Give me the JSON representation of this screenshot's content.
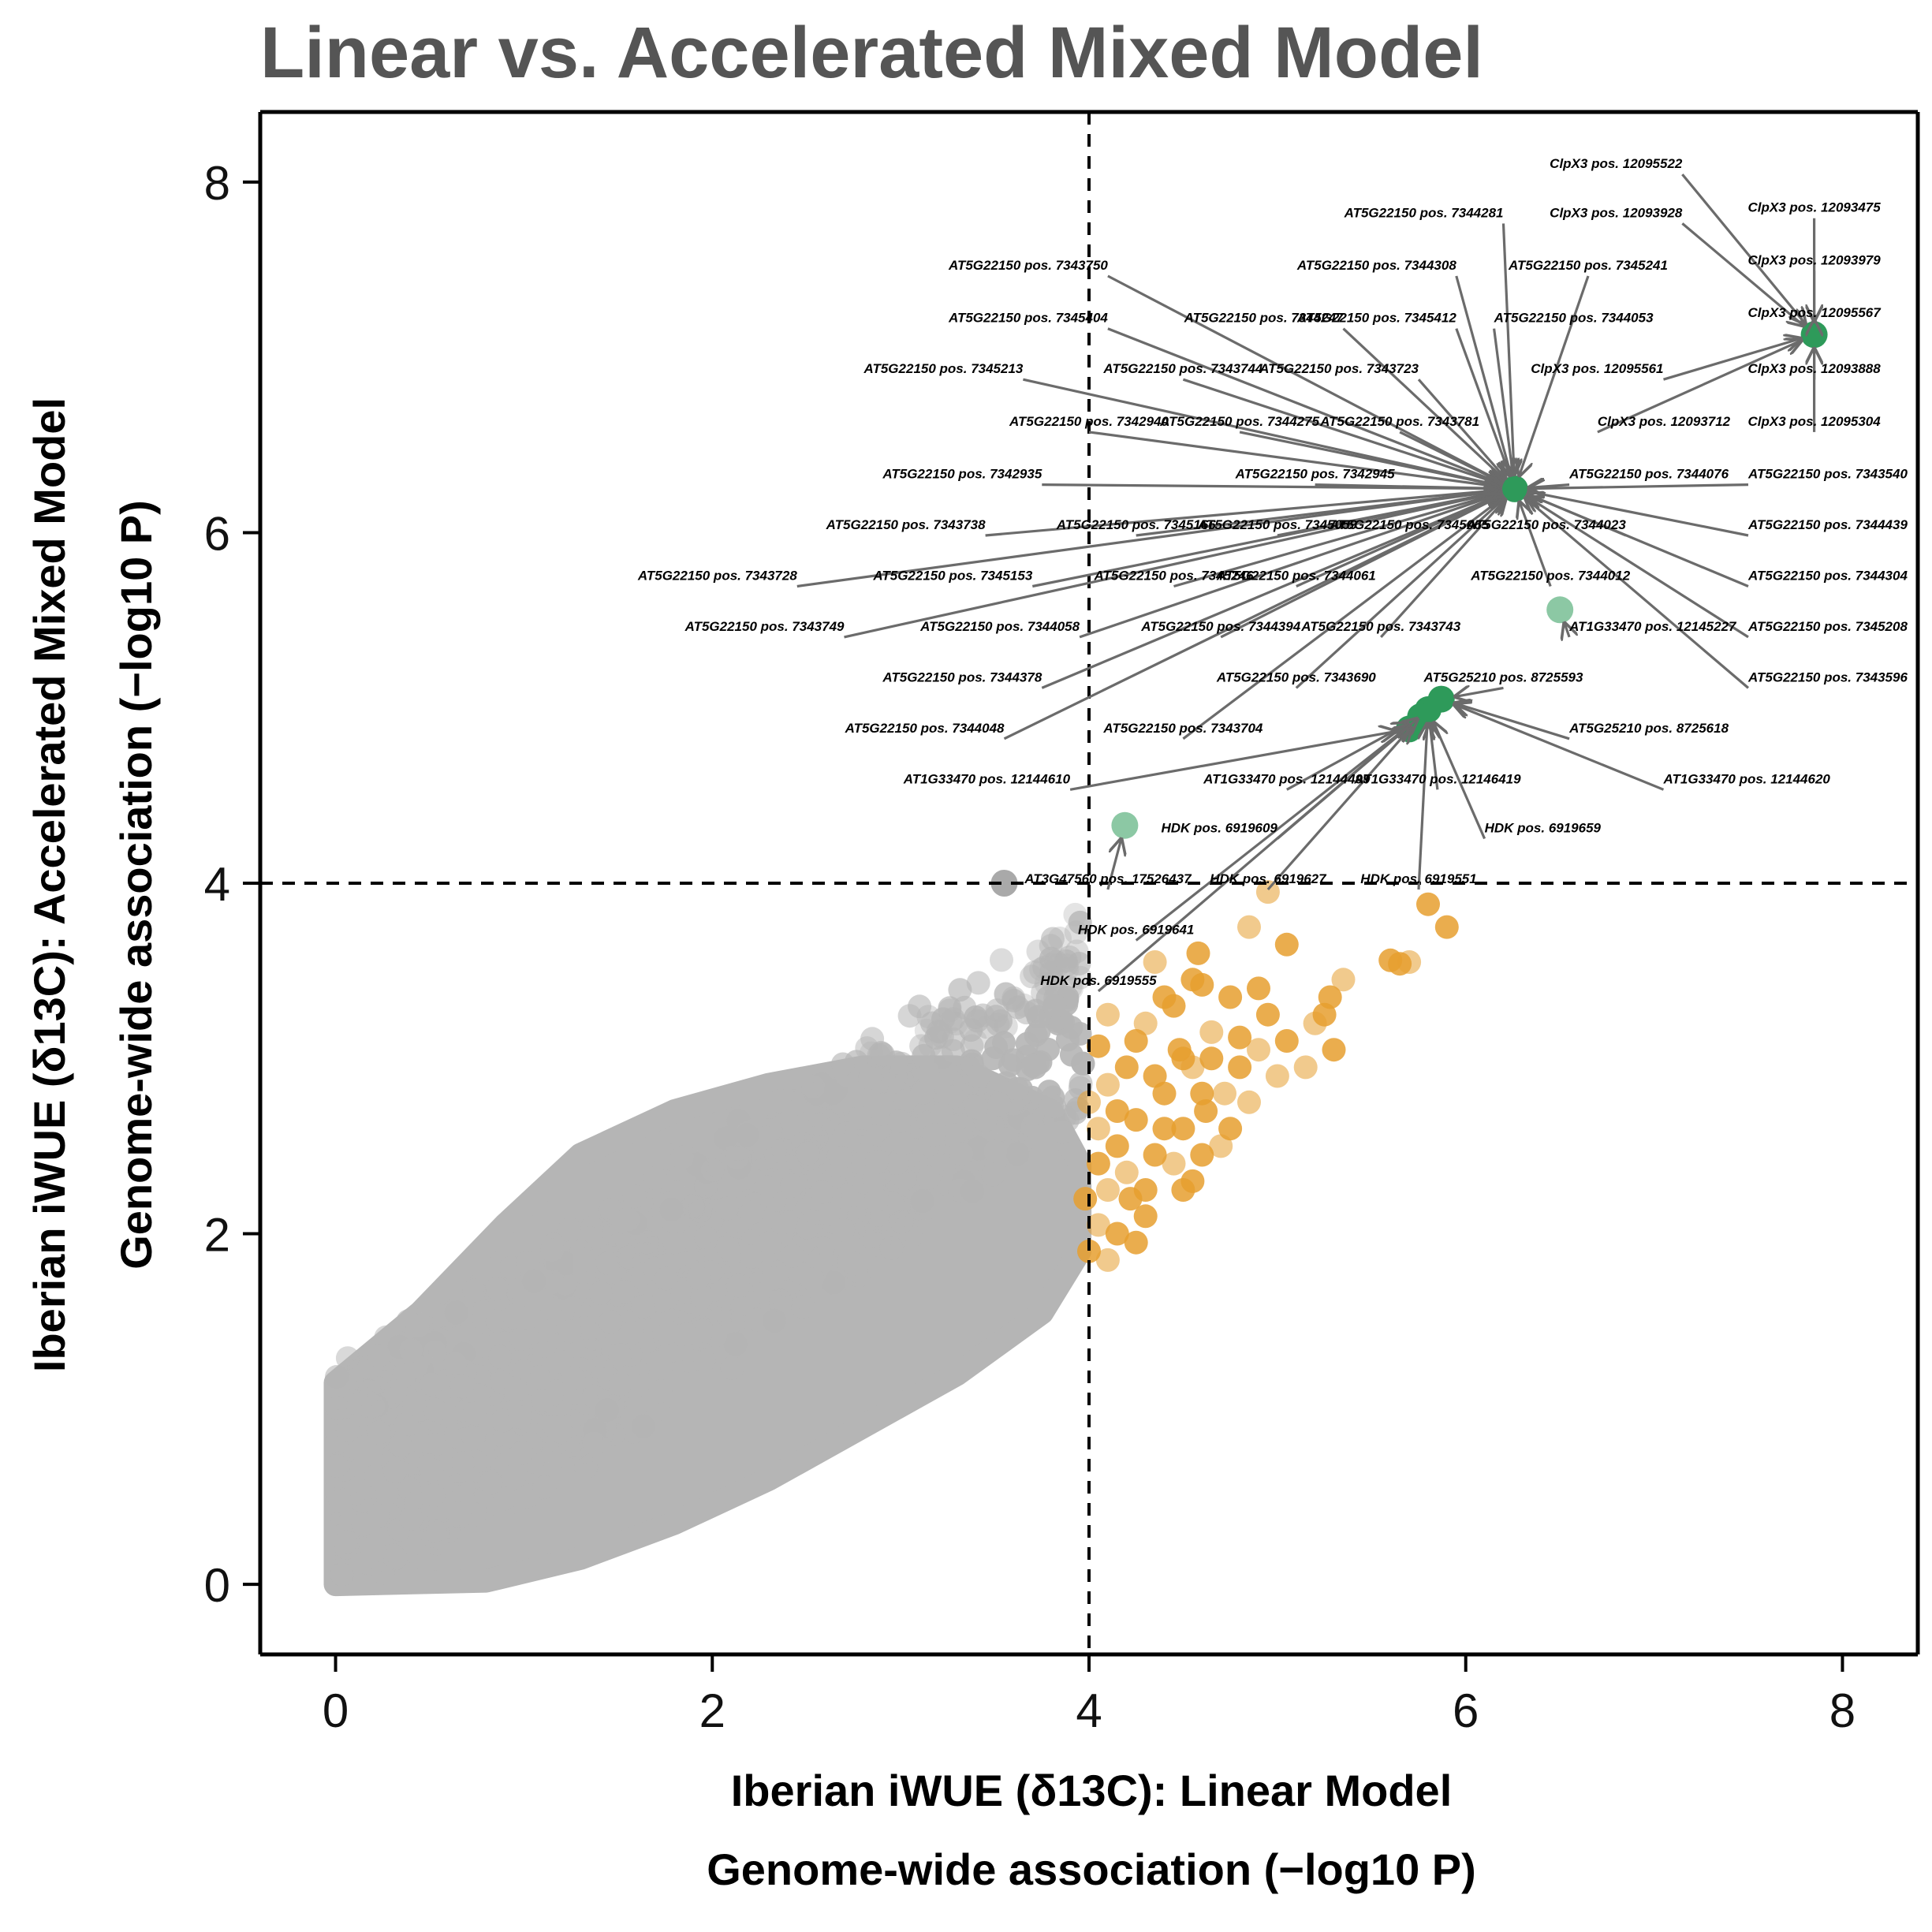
{
  "chart_data": {
    "type": "scatter",
    "title": "Linear vs. Accelerated Mixed Model",
    "xlabel_line1": "Iberian iWUE (δ13C): Linear Model",
    "xlabel_line2": "Genome-wide association (−log10 P)",
    "ylabel_line1": "Iberian iWUE (δ13C): Accelerated Mixed Model",
    "ylabel_line2": "Genome-wide association (−log10 P)",
    "xlim": [
      -0.4,
      8.4
    ],
    "ylim": [
      -0.4,
      8.4
    ],
    "xticks": [
      0,
      2,
      4,
      6,
      8
    ],
    "yticks": [
      0,
      2,
      4,
      6,
      8
    ],
    "thresholds": {
      "x": 4,
      "y": 4
    },
    "colors": {
      "background_snps": "#b5b5b5",
      "linear_significant": "#e69f2f",
      "both_significant": "#2e9a5a",
      "arrow": "#6b6b6b"
    },
    "highlighted_points": [
      {
        "x": 7.85,
        "y": 7.13,
        "group": "both"
      },
      {
        "x": 6.26,
        "y": 6.25,
        "group": "both"
      },
      {
        "x": 6.5,
        "y": 5.56,
        "group": "both"
      },
      {
        "x": 5.87,
        "y": 5.05,
        "group": "both"
      },
      {
        "x": 5.8,
        "y": 4.99,
        "group": "both"
      },
      {
        "x": 5.76,
        "y": 4.95,
        "group": "both"
      },
      {
        "x": 5.7,
        "y": 4.88,
        "group": "both"
      },
      {
        "x": 4.19,
        "y": 4.33,
        "group": "both"
      },
      {
        "x": 3.55,
        "y": 4.0,
        "group": "background"
      }
    ],
    "orange_points": [
      [
        4.95,
        3.95
      ],
      [
        5.8,
        3.88
      ],
      [
        5.9,
        3.75
      ],
      [
        4.85,
        3.75
      ],
      [
        5.05,
        3.65
      ],
      [
        5.6,
        3.56
      ],
      [
        5.7,
        3.55
      ],
      [
        5.65,
        3.54
      ],
      [
        4.58,
        3.6
      ],
      [
        4.35,
        3.55
      ],
      [
        4.55,
        3.45
      ],
      [
        4.6,
        3.42
      ],
      [
        5.35,
        3.45
      ],
      [
        5.28,
        3.35
      ],
      [
        4.75,
        3.35
      ],
      [
        5.2,
        3.2
      ],
      [
        4.95,
        3.25
      ],
      [
        4.45,
        3.3
      ],
      [
        4.1,
        3.25
      ],
      [
        4.25,
        3.1
      ],
      [
        5.05,
        3.1
      ],
      [
        4.9,
        3.05
      ],
      [
        4.65,
        3.0
      ],
      [
        4.5,
        3.0
      ],
      [
        4.3,
        3.2
      ],
      [
        5.3,
        3.05
      ],
      [
        4.05,
        3.07
      ],
      [
        5.15,
        2.95
      ],
      [
        4.8,
        2.95
      ],
      [
        4.6,
        2.8
      ],
      [
        4.85,
        2.75
      ],
      [
        4.2,
        2.95
      ],
      [
        4.4,
        2.8
      ],
      [
        4.1,
        2.85
      ],
      [
        4.25,
        2.65
      ],
      [
        4.5,
        2.6
      ],
      [
        4.0,
        2.75
      ],
      [
        4.15,
        2.5
      ],
      [
        4.35,
        2.45
      ],
      [
        4.7,
        2.5
      ],
      [
        4.55,
        2.3
      ],
      [
        4.3,
        2.25
      ],
      [
        4.1,
        2.25
      ],
      [
        4.05,
        2.4
      ],
      [
        3.98,
        2.2
      ],
      [
        4.2,
        2.35
      ],
      [
        4.4,
        2.6
      ],
      [
        4.6,
        2.45
      ],
      [
        4.45,
        2.4
      ],
      [
        4.3,
        2.1
      ],
      [
        4.15,
        2.0
      ],
      [
        4.05,
        2.05
      ],
      [
        4.0,
        1.9
      ],
      [
        4.25,
        1.95
      ],
      [
        4.1,
        1.85
      ],
      [
        4.5,
        2.25
      ],
      [
        4.75,
        2.6
      ],
      [
        5.0,
        2.9
      ],
      [
        4.9,
        3.4
      ],
      [
        5.25,
        3.25
      ],
      [
        4.65,
        3.15
      ],
      [
        4.4,
        3.35
      ],
      [
        4.15,
        2.7
      ],
      [
        4.55,
        2.95
      ],
      [
        4.8,
        3.12
      ],
      [
        4.35,
        2.9
      ],
      [
        4.05,
        2.6
      ],
      [
        4.22,
        2.2
      ],
      [
        4.62,
        2.7
      ],
      [
        4.72,
        2.8
      ],
      [
        4.48,
        3.05
      ]
    ],
    "annotations": [
      {
        "label": "ClpX3 pos. 12095522",
        "lx": 7.15,
        "ly": 8.08,
        "tx": 7.85,
        "ty": 7.13,
        "anchor": "end"
      },
      {
        "label": "ClpX3 pos. 12093475",
        "lx": 7.85,
        "ly": 7.83,
        "tx": 7.85,
        "ty": 7.13,
        "anchor": "middle"
      },
      {
        "label": "AT5G22150 pos. 7344281",
        "lx": 6.2,
        "ly": 7.8,
        "tx": 6.26,
        "ty": 6.25,
        "anchor": "end"
      },
      {
        "label": "ClpX3 pos. 12093928",
        "lx": 7.15,
        "ly": 7.8,
        "tx": 7.85,
        "ty": 7.13,
        "anchor": "end"
      },
      {
        "label": "ClpX3 pos. 12093979",
        "lx": 7.85,
        "ly": 7.53,
        "tx": 7.85,
        "ty": 7.13,
        "anchor": "middle"
      },
      {
        "label": "AT5G22150 pos. 7343750",
        "lx": 4.1,
        "ly": 7.5,
        "tx": 6.26,
        "ty": 6.25,
        "anchor": "end"
      },
      {
        "label": "AT5G22150 pos. 7344308",
        "lx": 5.95,
        "ly": 7.5,
        "tx": 6.26,
        "ty": 6.25,
        "anchor": "end"
      },
      {
        "label": "AT5G22150 pos. 7345241",
        "lx": 6.65,
        "ly": 7.5,
        "tx": 6.26,
        "ty": 6.25,
        "anchor": "middle"
      },
      {
        "label": "ClpX3 pos. 12095567",
        "lx": 7.85,
        "ly": 7.23,
        "tx": 7.85,
        "ty": 7.13,
        "anchor": "middle"
      },
      {
        "label": "AT5G22150 pos. 7345404",
        "lx": 4.1,
        "ly": 7.2,
        "tx": 6.26,
        "ty": 6.25,
        "anchor": "end"
      },
      {
        "label": "AT5G22150 pos. 7344247",
        "lx": 5.35,
        "ly": 7.2,
        "tx": 6.26,
        "ty": 6.25,
        "anchor": "end"
      },
      {
        "label": "AT5G22150 pos. 7345412",
        "lx": 5.95,
        "ly": 7.2,
        "tx": 6.26,
        "ty": 6.25,
        "anchor": "end"
      },
      {
        "label": "AT5G22150 pos. 7344053",
        "lx": 6.15,
        "ly": 7.2,
        "tx": 6.26,
        "ty": 6.25,
        "anchor": "start"
      },
      {
        "label": "AT5G22150 pos. 7345213",
        "lx": 3.65,
        "ly": 6.91,
        "tx": 6.26,
        "ty": 6.25,
        "anchor": "end"
      },
      {
        "label": "AT5G22150 pos. 7343744",
        "lx": 4.5,
        "ly": 6.91,
        "tx": 6.26,
        "ty": 6.25,
        "anchor": "middle"
      },
      {
        "label": "AT5G22150 pos. 7343723",
        "lx": 5.75,
        "ly": 6.91,
        "tx": 6.26,
        "ty": 6.25,
        "anchor": "end"
      },
      {
        "label": "ClpX3 pos. 12095561",
        "lx": 7.05,
        "ly": 6.91,
        "tx": 7.85,
        "ty": 7.13,
        "anchor": "end"
      },
      {
        "label": "ClpX3 pos. 12093888",
        "lx": 7.85,
        "ly": 6.91,
        "tx": 7.85,
        "ty": 7.13,
        "anchor": "middle"
      },
      {
        "label": "AT5G22150 pos. 7342940",
        "lx": 4.0,
        "ly": 6.61,
        "tx": 6.26,
        "ty": 6.25,
        "anchor": "middle"
      },
      {
        "label": "AT5G22150 pos. 7344275",
        "lx": 4.8,
        "ly": 6.61,
        "tx": 6.26,
        "ty": 6.25,
        "anchor": "middle"
      },
      {
        "label": "AT5G22150 pos. 7343781",
        "lx": 5.65,
        "ly": 6.61,
        "tx": 6.26,
        "ty": 6.25,
        "anchor": "middle"
      },
      {
        "label": "ClpX3 pos. 12093712",
        "lx": 6.7,
        "ly": 6.61,
        "tx": 7.85,
        "ty": 7.13,
        "anchor": "start"
      },
      {
        "label": "ClpX3 pos. 12095304",
        "lx": 7.85,
        "ly": 6.61,
        "tx": 7.85,
        "ty": 7.13,
        "anchor": "middle"
      },
      {
        "label": "AT5G22150 pos. 7342935",
        "lx": 3.75,
        "ly": 6.31,
        "tx": 6.26,
        "ty": 6.25,
        "anchor": "end"
      },
      {
        "label": "AT5G22150 pos. 7342945",
        "lx": 5.2,
        "ly": 6.31,
        "tx": 6.26,
        "ty": 6.25,
        "anchor": "middle"
      },
      {
        "label": "AT5G22150 pos. 7344076",
        "lx": 6.55,
        "ly": 6.31,
        "tx": 6.26,
        "ty": 6.25,
        "anchor": "start"
      },
      {
        "label": "AT5G22150 pos. 7343540",
        "lx": 7.5,
        "ly": 6.31,
        "tx": 6.26,
        "ty": 6.25,
        "anchor": "start"
      },
      {
        "label": "AT5G22150 pos. 7343738",
        "lx": 3.45,
        "ly": 6.02,
        "tx": 6.26,
        "ty": 6.25,
        "anchor": "end"
      },
      {
        "label": "AT5G22150 pos. 7345166",
        "lx": 4.25,
        "ly": 6.02,
        "tx": 6.26,
        "ty": 6.25,
        "anchor": "middle"
      },
      {
        "label": "AT5G22150 pos. 7345059",
        "lx": 5.0,
        "ly": 6.02,
        "tx": 6.26,
        "ty": 6.25,
        "anchor": "middle"
      },
      {
        "label": "AT5G22150 pos. 7345065",
        "lx": 5.7,
        "ly": 6.02,
        "tx": 6.26,
        "ty": 6.25,
        "anchor": "middle"
      },
      {
        "label": "AT5G22150 pos. 7344023",
        "lx": 6.85,
        "ly": 6.02,
        "tx": 6.26,
        "ty": 6.25,
        "anchor": "end"
      },
      {
        "label": "AT5G22150 pos. 7344439",
        "lx": 7.5,
        "ly": 6.02,
        "tx": 6.26,
        "ty": 6.25,
        "anchor": "start"
      },
      {
        "label": "AT5G22150 pos. 7343728",
        "lx": 2.45,
        "ly": 5.73,
        "tx": 6.26,
        "ty": 6.25,
        "anchor": "end"
      },
      {
        "label": "AT5G22150 pos. 7345153",
        "lx": 3.7,
        "ly": 5.73,
        "tx": 6.26,
        "ty": 6.25,
        "anchor": "end"
      },
      {
        "label": "AT5G22150 pos. 7345246",
        "lx": 4.45,
        "ly": 5.73,
        "tx": 6.26,
        "ty": 6.25,
        "anchor": "middle"
      },
      {
        "label": "AT5G22150 pos. 7344061",
        "lx": 5.1,
        "ly": 5.73,
        "tx": 6.26,
        "ty": 6.25,
        "anchor": "middle"
      },
      {
        "label": "AT5G22150 pos. 7344012",
        "lx": 6.45,
        "ly": 5.73,
        "tx": 6.26,
        "ty": 6.25,
        "anchor": "middle"
      },
      {
        "label": "AT5G22150 pos. 7344304",
        "lx": 7.5,
        "ly": 5.73,
        "tx": 6.26,
        "ty": 6.25,
        "anchor": "start"
      },
      {
        "label": "AT5G22150 pos. 7343749",
        "lx": 2.7,
        "ly": 5.44,
        "tx": 6.26,
        "ty": 6.25,
        "anchor": "end"
      },
      {
        "label": "AT5G22150 pos. 7344058",
        "lx": 3.95,
        "ly": 5.44,
        "tx": 6.26,
        "ty": 6.25,
        "anchor": "end"
      },
      {
        "label": "AT5G22150 pos. 7344394",
        "lx": 4.7,
        "ly": 5.44,
        "tx": 6.26,
        "ty": 6.25,
        "anchor": "middle"
      },
      {
        "label": "AT5G22150 pos. 7343743",
        "lx": 5.55,
        "ly": 5.44,
        "tx": 6.26,
        "ty": 6.25,
        "anchor": "middle"
      },
      {
        "label": "AT1G33470 pos. 12145227",
        "lx": 6.55,
        "ly": 5.44,
        "tx": 6.5,
        "ty": 5.56,
        "anchor": "start"
      },
      {
        "label": "AT5G22150 pos. 7345208",
        "lx": 7.5,
        "ly": 5.44,
        "tx": 6.26,
        "ty": 6.25,
        "anchor": "start"
      },
      {
        "label": "AT5G22150 pos. 7344378",
        "lx": 3.75,
        "ly": 5.15,
        "tx": 6.26,
        "ty": 6.25,
        "anchor": "end"
      },
      {
        "label": "AT5G22150 pos. 7343690",
        "lx": 5.1,
        "ly": 5.15,
        "tx": 6.26,
        "ty": 6.25,
        "anchor": "middle"
      },
      {
        "label": "AT5G25210 pos. 8725593",
        "lx": 6.2,
        "ly": 5.15,
        "tx": 5.87,
        "ty": 5.05,
        "anchor": "middle"
      },
      {
        "label": "AT5G22150 pos. 7343596",
        "lx": 7.5,
        "ly": 5.15,
        "tx": 6.26,
        "ty": 6.25,
        "anchor": "start"
      },
      {
        "label": "AT5G22150 pos. 7344048",
        "lx": 3.55,
        "ly": 4.86,
        "tx": 6.26,
        "ty": 6.25,
        "anchor": "end"
      },
      {
        "label": "AT5G22150 pos. 7343704",
        "lx": 4.5,
        "ly": 4.86,
        "tx": 6.26,
        "ty": 6.25,
        "anchor": "middle"
      },
      {
        "label": "AT5G25210 pos. 8725618",
        "lx": 6.55,
        "ly": 4.86,
        "tx": 5.87,
        "ty": 5.05,
        "anchor": "start"
      },
      {
        "label": "AT1G33470 pos. 12144610",
        "lx": 3.9,
        "ly": 4.57,
        "tx": 5.7,
        "ty": 4.88,
        "anchor": "end"
      },
      {
        "label": "AT1G33470 pos. 12144499",
        "lx": 5.05,
        "ly": 4.57,
        "tx": 5.76,
        "ty": 4.95,
        "anchor": "middle"
      },
      {
        "label": "AT1G33470 pos. 12146419",
        "lx": 5.85,
        "ly": 4.57,
        "tx": 5.8,
        "ty": 4.99,
        "anchor": "middle"
      },
      {
        "label": "AT1G33470 pos. 12144620",
        "lx": 7.05,
        "ly": 4.57,
        "tx": 5.87,
        "ty": 5.05,
        "anchor": "start"
      },
      {
        "label": "HDK pos. 6919609",
        "lx": 5.0,
        "ly": 4.29,
        "tx": 5.76,
        "ty": 4.95,
        "anchor": "end"
      },
      {
        "label": "HDK pos. 6919659",
        "lx": 6.1,
        "ly": 4.29,
        "tx": 5.8,
        "ty": 4.99,
        "anchor": "start"
      },
      {
        "label": "AT3G47560 pos. 17526437",
        "lx": 4.1,
        "ly": 4.0,
        "tx": 4.19,
        "ty": 4.33,
        "anchor": "middle"
      },
      {
        "label": "HDK pos. 6919627",
        "lx": 4.95,
        "ly": 4.0,
        "tx": 5.76,
        "ty": 4.95,
        "anchor": "middle"
      },
      {
        "label": "HDK pos. 6919551",
        "lx": 5.75,
        "ly": 4.0,
        "tx": 5.8,
        "ty": 4.99,
        "anchor": "middle"
      },
      {
        "label": "HDK pos. 6919641",
        "lx": 4.25,
        "ly": 3.71,
        "tx": 5.76,
        "ty": 4.95,
        "anchor": "middle"
      },
      {
        "label": "HDK pos. 6919555",
        "lx": 4.05,
        "ly": 3.42,
        "tx": 5.8,
        "ty": 4.99,
        "anchor": "middle"
      }
    ]
  }
}
